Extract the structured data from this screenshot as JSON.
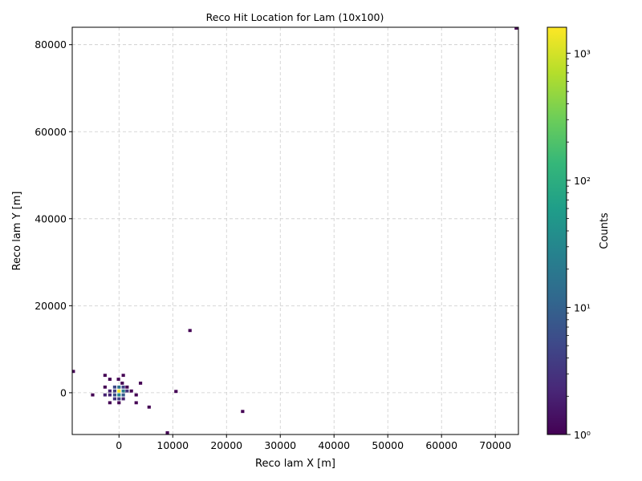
{
  "chart_data": {
    "type": "heatmap",
    "title": "Reco Hit Location for Lam (10x100)",
    "xlabel": "Reco lam X [m]",
    "ylabel": "Reco lam Y [m]",
    "xlim": [
      -8700,
      74300
    ],
    "ylim": [
      -9600,
      84000
    ],
    "x_ticks": [
      0,
      10000,
      20000,
      30000,
      40000,
      50000,
      60000,
      70000
    ],
    "y_ticks": [
      0,
      20000,
      40000,
      60000,
      80000
    ],
    "grid": true,
    "colorbar": {
      "label": "Counts",
      "scale": "log",
      "min": 1,
      "max": 1600,
      "ticks": [
        {
          "value": 1,
          "label": "10⁰"
        },
        {
          "value": 10,
          "label": "10¹"
        },
        {
          "value": 100,
          "label": "10²"
        },
        {
          "value": 1000,
          "label": "10³"
        }
      ]
    },
    "colormap": [
      "#440154",
      "#482878",
      "#3e4989",
      "#31688e",
      "#26828e",
      "#1f9e89",
      "#35b779",
      "#6ece58",
      "#b5de2b",
      "#fde725"
    ],
    "points": [
      {
        "x": -8500,
        "y": 4900,
        "count": 1
      },
      {
        "x": -2600,
        "y": 4000,
        "count": 1
      },
      {
        "x": 800,
        "y": 4000,
        "count": 1
      },
      {
        "x": -1700,
        "y": 3100,
        "count": 1
      },
      {
        "x": -100,
        "y": 3100,
        "count": 1
      },
      {
        "x": 4000,
        "y": 2200,
        "count": 1
      },
      {
        "x": -2600,
        "y": 1300,
        "count": 1
      },
      {
        "x": 1500,
        "y": 1300,
        "count": 1
      },
      {
        "x": 600,
        "y": 2200,
        "count": 1
      },
      {
        "x": 2300,
        "y": 400,
        "count": 1
      },
      {
        "x": 10600,
        "y": 300,
        "count": 1
      },
      {
        "x": -1700,
        "y": 400,
        "count": 2
      },
      {
        "x": -800,
        "y": 400,
        "count": 4
      },
      {
        "x": 0,
        "y": 400,
        "count": 1500
      },
      {
        "x": 800,
        "y": 400,
        "count": 20
      },
      {
        "x": 1500,
        "y": 400,
        "count": 3
      },
      {
        "x": -800,
        "y": 1300,
        "count": 5
      },
      {
        "x": 0,
        "y": 1300,
        "count": 15
      },
      {
        "x": 800,
        "y": 1300,
        "count": 4
      },
      {
        "x": -800,
        "y": -500,
        "count": 6
      },
      {
        "x": 0,
        "y": -500,
        "count": 30
      },
      {
        "x": 800,
        "y": -500,
        "count": 8
      },
      {
        "x": -1700,
        "y": -500,
        "count": 2
      },
      {
        "x": -2600,
        "y": -500,
        "count": 2
      },
      {
        "x": -4900,
        "y": -500,
        "count": 1
      },
      {
        "x": 3200,
        "y": -500,
        "count": 1
      },
      {
        "x": -800,
        "y": -1400,
        "count": 3
      },
      {
        "x": 0,
        "y": -1400,
        "count": 4
      },
      {
        "x": 800,
        "y": -1400,
        "count": 2
      },
      {
        "x": -1700,
        "y": -2300,
        "count": 1
      },
      {
        "x": 0,
        "y": -2300,
        "count": 1
      },
      {
        "x": 3200,
        "y": -2300,
        "count": 1
      },
      {
        "x": 5600,
        "y": -3300,
        "count": 1
      },
      {
        "x": 23000,
        "y": -4300,
        "count": 1
      },
      {
        "x": 13200,
        "y": 14300,
        "count": 1
      },
      {
        "x": 9000,
        "y": -9200,
        "count": 1
      },
      {
        "x": 73900,
        "y": 83800,
        "count": 1
      }
    ]
  }
}
